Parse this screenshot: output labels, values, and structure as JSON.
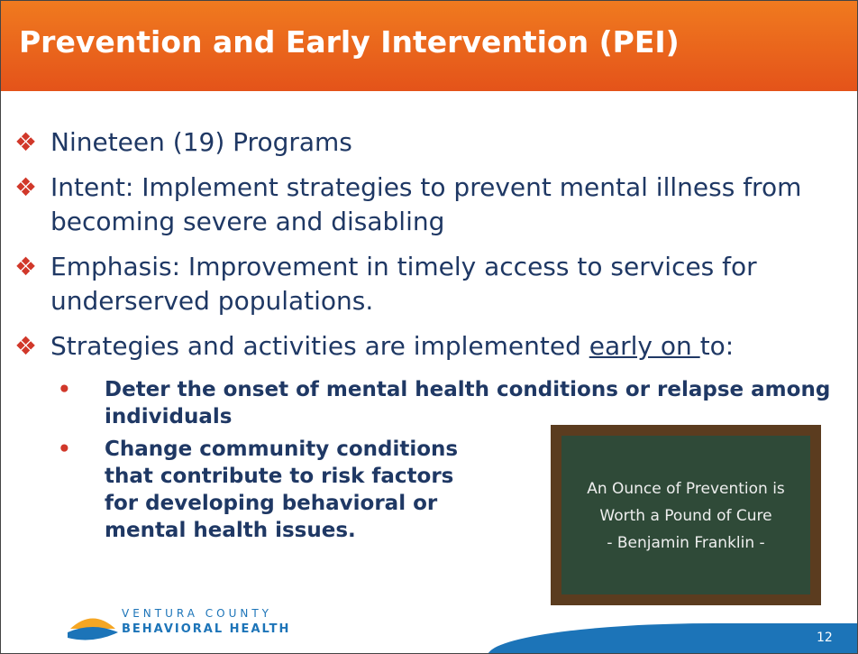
{
  "header": {
    "title": "Prevention and Early Intervention (PEI)"
  },
  "bullets": [
    {
      "text": "Nineteen (19) Programs"
    },
    {
      "text": "Intent:  Implement strategies to prevent mental illness from becoming severe and disabling"
    },
    {
      "text": "Emphasis:  Improvement in timely access to services for underserved populations."
    },
    {
      "text_before": "Strategies and activities are implemented ",
      "underlined": "early on ",
      "text_after": "to:"
    }
  ],
  "sub_bullets": [
    "Deter the onset of mental health conditions or relapse among individuals",
    "Change community conditions that contribute to risk factors for developing behavioral or mental health issues."
  ],
  "chalkboard": {
    "lines": [
      "An Ounce of Prevention is",
      "Worth a Pound of Cure",
      "- Benjamin Franklin -"
    ]
  },
  "logo": {
    "line1": "VENTURA COUNTY",
    "line2": "BEHAVIORAL HEALTH"
  },
  "page_number": "12"
}
